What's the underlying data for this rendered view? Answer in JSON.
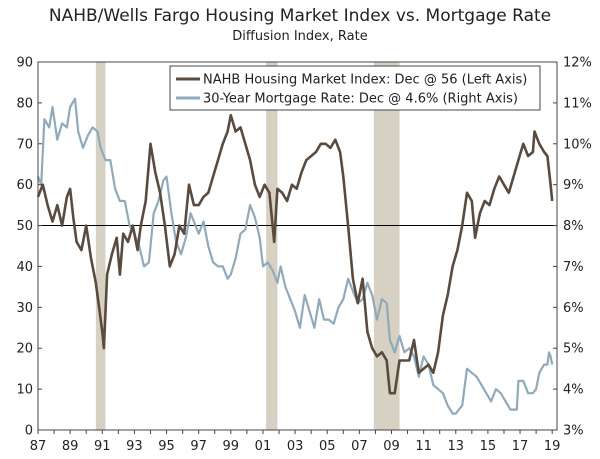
{
  "chart_data": {
    "type": "line",
    "title": "NAHB/Wells Fargo Housing Market Index vs. Mortgage Rate",
    "subtitle": "Diffusion Index, Rate",
    "x_range": [
      1987,
      2019.3
    ],
    "x_ticks": [
      "87",
      "89",
      "91",
      "93",
      "95",
      "97",
      "99",
      "01",
      "03",
      "05",
      "07",
      "09",
      "11",
      "13",
      "15",
      "17",
      "19"
    ],
    "left_axis": {
      "min": 0,
      "max": 90,
      "step": 10,
      "ticks": [
        "0",
        "10",
        "20",
        "30",
        "40",
        "50",
        "60",
        "70",
        "80",
        "90"
      ]
    },
    "right_axis": {
      "min": 3,
      "max": 12,
      "step": 1,
      "ticks": [
        "3%",
        "4%",
        "5%",
        "6%",
        "7%",
        "8%",
        "9%",
        "10%",
        "11%",
        "12%"
      ]
    },
    "reference_line": 50,
    "recessions": [
      [
        1990.6,
        1991.2
      ],
      [
        2001.2,
        2001.9
      ],
      [
        2007.9,
        2009.5
      ]
    ],
    "colors": {
      "nahb": "#5b4a3e",
      "mortgage": "#8faabc",
      "recession": "#d6d1c2",
      "refline": "#000000"
    },
    "series": [
      {
        "name": "NAHB Housing Market Index: Dec @ 56 (Left Axis)",
        "axis": "left",
        "points": [
          [
            1987.0,
            57
          ],
          [
            1987.3,
            60
          ],
          [
            1987.6,
            55
          ],
          [
            1987.9,
            51
          ],
          [
            1988.2,
            55
          ],
          [
            1988.5,
            50
          ],
          [
            1988.8,
            57
          ],
          [
            1989.0,
            59
          ],
          [
            1989.2,
            52
          ],
          [
            1989.4,
            46
          ],
          [
            1989.7,
            44
          ],
          [
            1990.0,
            50
          ],
          [
            1990.3,
            42
          ],
          [
            1990.6,
            36
          ],
          [
            1990.8,
            30
          ],
          [
            1991.0,
            24
          ],
          [
            1991.1,
            20
          ],
          [
            1991.3,
            38
          ],
          [
            1991.6,
            43
          ],
          [
            1991.9,
            47
          ],
          [
            1992.1,
            38
          ],
          [
            1992.3,
            48
          ],
          [
            1992.6,
            46
          ],
          [
            1992.9,
            50
          ],
          [
            1993.2,
            44
          ],
          [
            1993.4,
            50
          ],
          [
            1993.7,
            56
          ],
          [
            1994.0,
            70
          ],
          [
            1994.3,
            63
          ],
          [
            1994.6,
            58
          ],
          [
            1994.9,
            50
          ],
          [
            1995.2,
            40
          ],
          [
            1995.5,
            43
          ],
          [
            1995.8,
            50
          ],
          [
            1996.1,
            48
          ],
          [
            1996.4,
            60
          ],
          [
            1996.7,
            55
          ],
          [
            1997.0,
            55
          ],
          [
            1997.3,
            57
          ],
          [
            1997.6,
            58
          ],
          [
            1997.9,
            62
          ],
          [
            1998.2,
            66
          ],
          [
            1998.5,
            70
          ],
          [
            1998.8,
            73
          ],
          [
            1999.0,
            77
          ],
          [
            1999.3,
            73
          ],
          [
            1999.6,
            74
          ],
          [
            1999.9,
            70
          ],
          [
            2000.2,
            66
          ],
          [
            2000.5,
            60
          ],
          [
            2000.8,
            57
          ],
          [
            2001.1,
            60
          ],
          [
            2001.4,
            58
          ],
          [
            2001.7,
            46
          ],
          [
            2001.9,
            59
          ],
          [
            2002.2,
            58
          ],
          [
            2002.5,
            56
          ],
          [
            2002.8,
            60
          ],
          [
            2003.1,
            59
          ],
          [
            2003.4,
            63
          ],
          [
            2003.7,
            66
          ],
          [
            2004.0,
            67
          ],
          [
            2004.3,
            68
          ],
          [
            2004.6,
            70
          ],
          [
            2004.9,
            70
          ],
          [
            2005.2,
            69
          ],
          [
            2005.5,
            71
          ],
          [
            2005.8,
            68
          ],
          [
            2006.0,
            62
          ],
          [
            2006.3,
            50
          ],
          [
            2006.6,
            37
          ],
          [
            2006.9,
            31
          ],
          [
            2007.2,
            37
          ],
          [
            2007.5,
            24
          ],
          [
            2007.8,
            20
          ],
          [
            2008.1,
            18
          ],
          [
            2008.4,
            19
          ],
          [
            2008.7,
            17
          ],
          [
            2008.9,
            9
          ],
          [
            2009.2,
            9
          ],
          [
            2009.5,
            17
          ],
          [
            2009.8,
            17
          ],
          [
            2010.1,
            17
          ],
          [
            2010.4,
            22
          ],
          [
            2010.7,
            14
          ],
          [
            2011.0,
            15
          ],
          [
            2011.3,
            16
          ],
          [
            2011.6,
            14
          ],
          [
            2011.9,
            19
          ],
          [
            2012.2,
            28
          ],
          [
            2012.5,
            33
          ],
          [
            2012.8,
            40
          ],
          [
            2013.1,
            44
          ],
          [
            2013.4,
            50
          ],
          [
            2013.7,
            58
          ],
          [
            2014.0,
            56
          ],
          [
            2014.2,
            47
          ],
          [
            2014.5,
            53
          ],
          [
            2014.8,
            56
          ],
          [
            2015.1,
            55
          ],
          [
            2015.4,
            59
          ],
          [
            2015.7,
            62
          ],
          [
            2016.0,
            60
          ],
          [
            2016.3,
            58
          ],
          [
            2016.6,
            62
          ],
          [
            2016.9,
            66
          ],
          [
            2017.2,
            70
          ],
          [
            2017.5,
            67
          ],
          [
            2017.8,
            68
          ],
          [
            2017.9,
            73
          ],
          [
            2018.2,
            70
          ],
          [
            2018.5,
            68
          ],
          [
            2018.7,
            67
          ],
          [
            2018.9,
            60
          ],
          [
            2019.0,
            56
          ]
        ]
      },
      {
        "name": "30-Year Mortgage Rate: Dec @ 4.6% (Right Axis)",
        "axis": "right",
        "points": [
          [
            1987.0,
            9.2
          ],
          [
            1987.2,
            9.0
          ],
          [
            1987.4,
            10.6
          ],
          [
            1987.7,
            10.4
          ],
          [
            1987.9,
            10.9
          ],
          [
            1988.2,
            10.1
          ],
          [
            1988.5,
            10.5
          ],
          [
            1988.8,
            10.4
          ],
          [
            1989.0,
            10.9
          ],
          [
            1989.3,
            11.1
          ],
          [
            1989.5,
            10.3
          ],
          [
            1989.8,
            9.9
          ],
          [
            1990.1,
            10.2
          ],
          [
            1990.4,
            10.4
          ],
          [
            1990.7,
            10.3
          ],
          [
            1990.9,
            9.9
          ],
          [
            1991.2,
            9.6
          ],
          [
            1991.5,
            9.6
          ],
          [
            1991.8,
            8.9
          ],
          [
            1992.1,
            8.6
          ],
          [
            1992.4,
            8.6
          ],
          [
            1992.7,
            8.0
          ],
          [
            1993.0,
            7.8
          ],
          [
            1993.3,
            7.5
          ],
          [
            1993.6,
            7.0
          ],
          [
            1993.9,
            7.1
          ],
          [
            1994.2,
            8.3
          ],
          [
            1994.5,
            8.6
          ],
          [
            1994.8,
            9.1
          ],
          [
            1995.0,
            9.2
          ],
          [
            1995.3,
            8.3
          ],
          [
            1995.6,
            7.6
          ],
          [
            1995.9,
            7.3
          ],
          [
            1996.2,
            7.7
          ],
          [
            1996.5,
            8.3
          ],
          [
            1996.8,
            8.0
          ],
          [
            1997.0,
            7.8
          ],
          [
            1997.3,
            8.1
          ],
          [
            1997.6,
            7.5
          ],
          [
            1997.9,
            7.1
          ],
          [
            1998.2,
            7.0
          ],
          [
            1998.5,
            7.0
          ],
          [
            1998.8,
            6.7
          ],
          [
            1999.0,
            6.8
          ],
          [
            1999.3,
            7.2
          ],
          [
            1999.6,
            7.8
          ],
          [
            1999.9,
            7.9
          ],
          [
            2000.2,
            8.5
          ],
          [
            2000.5,
            8.2
          ],
          [
            2000.8,
            7.7
          ],
          [
            2001.0,
            7.0
          ],
          [
            2001.3,
            7.1
          ],
          [
            2001.6,
            6.9
          ],
          [
            2001.9,
            6.6
          ],
          [
            2002.1,
            7.0
          ],
          [
            2002.4,
            6.5
          ],
          [
            2002.7,
            6.2
          ],
          [
            2003.0,
            5.9
          ],
          [
            2003.3,
            5.5
          ],
          [
            2003.6,
            6.3
          ],
          [
            2003.9,
            5.9
          ],
          [
            2004.2,
            5.5
          ],
          [
            2004.5,
            6.2
          ],
          [
            2004.8,
            5.7
          ],
          [
            2005.1,
            5.7
          ],
          [
            2005.4,
            5.6
          ],
          [
            2005.7,
            6.0
          ],
          [
            2006.0,
            6.2
          ],
          [
            2006.3,
            6.7
          ],
          [
            2006.6,
            6.4
          ],
          [
            2006.9,
            6.1
          ],
          [
            2007.2,
            6.2
          ],
          [
            2007.5,
            6.6
          ],
          [
            2007.8,
            6.3
          ],
          [
            2008.1,
            5.7
          ],
          [
            2008.4,
            6.2
          ],
          [
            2008.7,
            6.1
          ],
          [
            2008.9,
            5.2
          ],
          [
            2009.2,
            4.9
          ],
          [
            2009.5,
            5.3
          ],
          [
            2009.8,
            4.9
          ],
          [
            2010.1,
            5.0
          ],
          [
            2010.4,
            4.8
          ],
          [
            2010.7,
            4.3
          ],
          [
            2011.0,
            4.8
          ],
          [
            2011.3,
            4.6
          ],
          [
            2011.6,
            4.1
          ],
          [
            2011.9,
            4.0
          ],
          [
            2012.2,
            3.9
          ],
          [
            2012.5,
            3.6
          ],
          [
            2012.8,
            3.4
          ],
          [
            2013.0,
            3.4
          ],
          [
            2013.4,
            3.6
          ],
          [
            2013.7,
            4.5
          ],
          [
            2014.0,
            4.4
          ],
          [
            2014.3,
            4.3
          ],
          [
            2014.6,
            4.1
          ],
          [
            2014.9,
            3.9
          ],
          [
            2015.2,
            3.7
          ],
          [
            2015.5,
            4.0
          ],
          [
            2015.8,
            3.9
          ],
          [
            2016.1,
            3.7
          ],
          [
            2016.4,
            3.5
          ],
          [
            2016.8,
            3.5
          ],
          [
            2016.9,
            4.2
          ],
          [
            2017.2,
            4.2
          ],
          [
            2017.5,
            3.9
          ],
          [
            2017.8,
            3.9
          ],
          [
            2018.0,
            4.0
          ],
          [
            2018.2,
            4.4
          ],
          [
            2018.5,
            4.6
          ],
          [
            2018.7,
            4.6
          ],
          [
            2018.8,
            4.9
          ],
          [
            2018.9,
            4.8
          ],
          [
            2019.0,
            4.6
          ]
        ]
      }
    ]
  }
}
